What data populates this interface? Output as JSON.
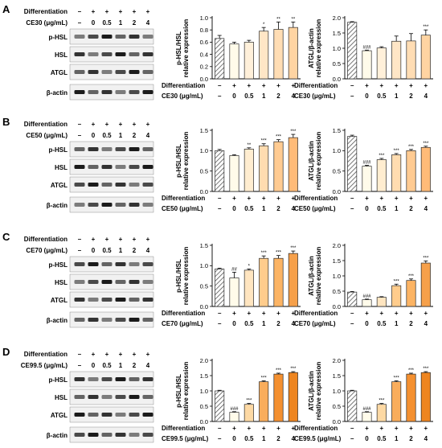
{
  "colors": {
    "control_hatch": "#7a7a7a",
    "bar_outline": "#2a2a2a",
    "panel_fills": [
      [
        "#fffbea",
        "#fff0da",
        "#ffe6c6",
        "#ffddb4",
        "#ffd4a2"
      ],
      [
        "#fffbea",
        "#ffedd0",
        "#ffdcb0",
        "#ffcb92",
        "#ffbb78"
      ],
      [
        "#fffbea",
        "#ffe5c0",
        "#ffcc8c",
        "#fcb464",
        "#f6a04a"
      ],
      [
        "#fffbea",
        "#fdd9a4",
        "#f9ad5c",
        "#f49030",
        "#ee8520"
      ]
    ]
  },
  "western_labels": [
    "p-HSL",
    "HSL",
    "ATGL",
    "β-actin"
  ],
  "bar_categories": [
    "–",
    "0",
    "0.5",
    "1",
    "2",
    "4"
  ],
  "diff_signs": [
    "–",
    "+",
    "+",
    "+",
    "+",
    "+"
  ],
  "row_label_diff": "Differentiation",
  "panels": [
    {
      "letter": "A",
      "treatment": "CE30 (μg/mL)",
      "blot_doses": [
        "–",
        "0",
        "0.5",
        "1",
        "2",
        "4"
      ],
      "charts": [
        {
          "ylabel": [
            "p-HSL/HSL",
            "relative expression"
          ],
          "ylim": [
            0,
            1.0
          ],
          "yticks": [
            "0.0",
            "0.2",
            "0.4",
            "0.6",
            "0.8",
            "1.0"
          ],
          "tick_values": [
            0,
            0.2,
            0.4,
            0.6,
            0.8,
            1.0
          ],
          "values": [
            0.66,
            0.57,
            0.6,
            0.78,
            0.81,
            0.84
          ],
          "errors": [
            0.05,
            0.03,
            0.03,
            0.06,
            0.12,
            0.09
          ],
          "sig": [
            "",
            "",
            "",
            "*",
            "**",
            "**"
          ]
        },
        {
          "ylabel": [
            "ATGL/β-actin",
            "relative expression"
          ],
          "ylim": [
            0,
            2.0
          ],
          "yticks": [
            "0.0",
            "0.5",
            "1.0",
            "1.5",
            "2.0"
          ],
          "tick_values": [
            0,
            0.5,
            1.0,
            1.5,
            2.0
          ],
          "values": [
            1.85,
            0.92,
            1.01,
            1.23,
            1.24,
            1.43
          ],
          "errors": [
            0.02,
            0.02,
            0.04,
            0.17,
            0.24,
            0.17
          ],
          "sig": [
            "",
            "###",
            "",
            "",
            "",
            "***"
          ]
        }
      ]
    },
    {
      "letter": "B",
      "treatment": "CE50 (μg/mL)",
      "blot_doses": [
        "–",
        "0",
        "0.5",
        "1",
        "2",
        "4"
      ],
      "charts": [
        {
          "ylabel": [
            "p-HSL/HSL",
            "relative expression"
          ],
          "ylim": [
            0,
            1.5
          ],
          "yticks": [
            "0.0",
            "0.5",
            "1.0",
            "1.5"
          ],
          "tick_values": [
            0,
            0.5,
            1.0,
            1.5
          ],
          "values": [
            1.0,
            0.88,
            1.04,
            1.12,
            1.22,
            1.32
          ],
          "errors": [
            0.03,
            0.02,
            0.03,
            0.05,
            0.05,
            0.08
          ],
          "sig": [
            "",
            "",
            "**",
            "***",
            "***",
            "***"
          ]
        },
        {
          "ylabel": [
            "ATGL/β-actin",
            "relative expression"
          ],
          "ylim": [
            0,
            1.5
          ],
          "yticks": [
            "0.0",
            "0.5",
            "1.0",
            "1.5"
          ],
          "tick_values": [
            0,
            0.5,
            1.0,
            1.5
          ],
          "values": [
            1.35,
            0.62,
            0.78,
            0.9,
            1.0,
            1.08
          ],
          "errors": [
            0.03,
            0.02,
            0.03,
            0.03,
            0.03,
            0.03
          ],
          "sig": [
            "",
            "###",
            "***",
            "***",
            "***",
            "***"
          ]
        }
      ]
    },
    {
      "letter": "C",
      "treatment": "CE70 (μg/mL)",
      "blot_doses": [
        "–",
        "0",
        "0.5",
        "1",
        "2",
        "4"
      ],
      "charts": [
        {
          "ylabel": [
            "p-HSL/HSL",
            "relative expression"
          ],
          "ylim": [
            0,
            1.5
          ],
          "yticks": [
            "0.0",
            "0.5",
            "1.0",
            "1.5"
          ],
          "tick_values": [
            0,
            0.5,
            1.0,
            1.5
          ],
          "values": [
            0.92,
            0.7,
            0.89,
            1.18,
            1.18,
            1.3
          ],
          "errors": [
            0.02,
            0.14,
            0.03,
            0.06,
            0.07,
            0.06
          ],
          "sig": [
            "",
            "##",
            "*",
            "***",
            "***",
            "***"
          ]
        },
        {
          "ylabel": [
            "ATGL/β-actin",
            "relative expression"
          ],
          "ylim": [
            0,
            2.0
          ],
          "yticks": [
            "0.0",
            "0.5",
            "1.0",
            "1.5",
            "2.0"
          ],
          "tick_values": [
            0,
            0.5,
            1.0,
            1.5,
            2.0
          ],
          "values": [
            0.47,
            0.22,
            0.3,
            0.68,
            0.85,
            1.42
          ],
          "errors": [
            0.02,
            0.02,
            0.02,
            0.05,
            0.05,
            0.07
          ],
          "sig": [
            "",
            "###",
            "",
            "***",
            "***",
            "***"
          ]
        }
      ]
    },
    {
      "letter": "D",
      "treatment": "CE99.5 (μg/mL)",
      "blot_doses": [
        "–",
        "0",
        "0.5",
        "1",
        "2",
        "4"
      ],
      "charts": [
        {
          "ylabel": [
            "p-HSL/HSL",
            "relative expression"
          ],
          "ylim": [
            0,
            2.0
          ],
          "yticks": [
            "0.0",
            "0.5",
            "1.0",
            "1.5",
            "2.0"
          ],
          "tick_values": [
            0,
            0.5,
            1.0,
            1.5,
            2.0
          ],
          "values": [
            1.0,
            0.3,
            0.56,
            1.3,
            1.55,
            1.6
          ],
          "errors": [
            0.02,
            0.02,
            0.03,
            0.03,
            0.03,
            0.03
          ],
          "sig": [
            "",
            "###",
            "***",
            "***",
            "***",
            "***"
          ]
        },
        {
          "ylabel": [
            "ATGL/β-actin",
            "relative expression"
          ],
          "ylim": [
            0,
            2.0
          ],
          "yticks": [
            "0.0",
            "0.5",
            "1.0",
            "1.5",
            "2.0"
          ],
          "tick_values": [
            0,
            0.5,
            1.0,
            1.5,
            2.0
          ],
          "values": [
            1.0,
            0.3,
            0.56,
            1.3,
            1.55,
            1.6
          ],
          "errors": [
            0.02,
            0.02,
            0.03,
            0.03,
            0.03,
            0.03
          ],
          "sig": [
            "",
            "###",
            "***",
            "***",
            "***",
            "***"
          ]
        }
      ]
    }
  ],
  "chart_data": [
    {
      "type": "bar",
      "panel": "A",
      "ylabel": "p-HSL/HSL relative expression",
      "xlabel": "CE30 (μg/mL)",
      "categories": [
        "–",
        "0",
        "0.5",
        "1",
        "2",
        "4"
      ],
      "values": [
        0.66,
        0.57,
        0.6,
        0.78,
        0.81,
        0.84
      ],
      "ylim": [
        0,
        1.0
      ]
    },
    {
      "type": "bar",
      "panel": "A",
      "ylabel": "ATGL/β-actin relative expression",
      "xlabel": "CE30 (μg/mL)",
      "categories": [
        "–",
        "0",
        "0.5",
        "1",
        "2",
        "4"
      ],
      "values": [
        1.85,
        0.92,
        1.01,
        1.23,
        1.24,
        1.43
      ],
      "ylim": [
        0,
        2.0
      ]
    },
    {
      "type": "bar",
      "panel": "B",
      "ylabel": "p-HSL/HSL relative expression",
      "xlabel": "CE50 (μg/mL)",
      "categories": [
        "–",
        "0",
        "0.5",
        "1",
        "2",
        "4"
      ],
      "values": [
        1.0,
        0.88,
        1.04,
        1.12,
        1.22,
        1.32
      ],
      "ylim": [
        0,
        1.5
      ]
    },
    {
      "type": "bar",
      "panel": "B",
      "ylabel": "ATGL/β-actin relative expression",
      "xlabel": "CE50 (μg/mL)",
      "categories": [
        "–",
        "0",
        "0.5",
        "1",
        "2",
        "4"
      ],
      "values": [
        1.35,
        0.62,
        0.78,
        0.9,
        1.0,
        1.08
      ],
      "ylim": [
        0,
        1.5
      ]
    },
    {
      "type": "bar",
      "panel": "C",
      "ylabel": "p-HSL/HSL relative expression",
      "xlabel": "CE70 (μg/mL)",
      "categories": [
        "–",
        "0",
        "0.5",
        "1",
        "2",
        "4"
      ],
      "values": [
        0.92,
        0.7,
        0.89,
        1.18,
        1.18,
        1.3
      ],
      "ylim": [
        0,
        1.5
      ]
    },
    {
      "type": "bar",
      "panel": "C",
      "ylabel": "ATGL/β-actin relative expression",
      "xlabel": "CE70 (μg/mL)",
      "categories": [
        "–",
        "0",
        "0.5",
        "1",
        "2",
        "4"
      ],
      "values": [
        0.47,
        0.22,
        0.3,
        0.68,
        0.85,
        1.42
      ],
      "ylim": [
        0,
        2.0
      ]
    },
    {
      "type": "bar",
      "panel": "D",
      "ylabel": "p-HSL/HSL relative expression",
      "xlabel": "CE99.5 (μg/mL)",
      "categories": [
        "–",
        "0",
        "0.5",
        "1",
        "2",
        "4"
      ],
      "values": [
        1.0,
        0.3,
        0.56,
        1.3,
        1.55,
        1.6
      ],
      "ylim": [
        0,
        2.0
      ]
    },
    {
      "type": "bar",
      "panel": "D",
      "ylabel": "ATGL/β-actin relative expression",
      "xlabel": "CE99.5 (μg/mL)",
      "categories": [
        "–",
        "0",
        "0.5",
        "1",
        "2",
        "4"
      ],
      "values": [
        1.0,
        0.3,
        0.56,
        1.3,
        1.55,
        1.6
      ],
      "ylim": [
        0,
        2.0
      ]
    }
  ]
}
